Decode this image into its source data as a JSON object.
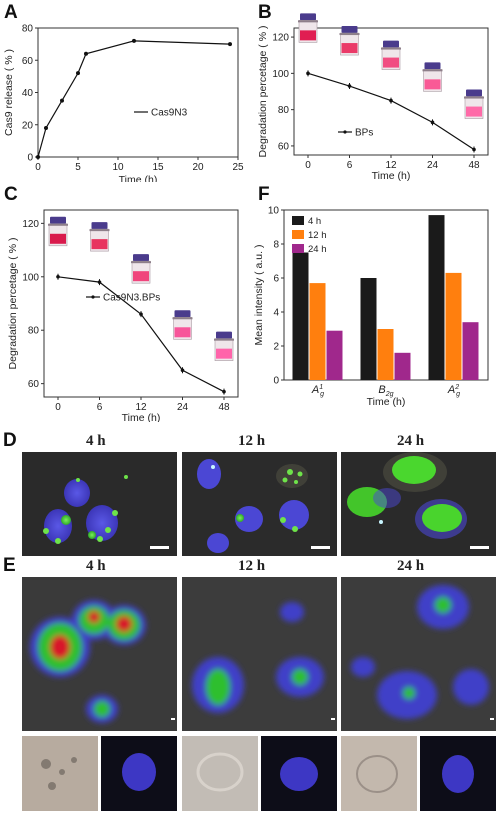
{
  "panel_letters": {
    "a": "A",
    "b": "B",
    "c": "C",
    "f": "F",
    "d": "D",
    "e": "E"
  },
  "chart_data": [
    {
      "id": "A",
      "type": "line",
      "x": [
        0,
        1,
        3,
        5,
        6,
        12,
        24
      ],
      "values": [
        0,
        18,
        35,
        52,
        64,
        72,
        70
      ],
      "xlabel": "Time (h)",
      "ylabel": "Cas9 release ( % )",
      "xlim": [
        0,
        25
      ],
      "ylim": [
        0,
        80
      ],
      "xticks": [
        0,
        5,
        10,
        15,
        20,
        25
      ],
      "yticks": [
        0,
        20,
        40,
        60,
        80
      ],
      "legend": "Cas9N3"
    },
    {
      "id": "B",
      "type": "line",
      "categories": [
        "0",
        "6",
        "12",
        "24",
        "48"
      ],
      "values": [
        100,
        93,
        85,
        73,
        58
      ],
      "xlabel": "Time (h)",
      "ylabel": "Degradation percetage ( % )",
      "ylim": [
        55,
        125
      ],
      "yticks": [
        60,
        80,
        100,
        120
      ],
      "legend": "BPs"
    },
    {
      "id": "C",
      "type": "line",
      "categories": [
        "0",
        "6",
        "12",
        "24",
        "48"
      ],
      "values": [
        100,
        98,
        86,
        65,
        57
      ],
      "xlabel": "Time (h)",
      "ylabel": "Degradation percetage ( % )",
      "ylim": [
        55,
        125
      ],
      "yticks": [
        60,
        80,
        100,
        120
      ],
      "legend": "Cas9N3.BPs"
    },
    {
      "id": "F",
      "type": "bar",
      "categories": [
        "A1g",
        "B2g",
        "A2g"
      ],
      "category_main": [
        "A",
        "B",
        "A"
      ],
      "category_sup": [
        "1",
        "",
        ""
      ],
      "category_sub": [
        "g",
        "2g",
        "g"
      ],
      "category_sup2": [
        "",
        "",
        "2"
      ],
      "series": [
        {
          "name": "4 h",
          "values": [
            7.5,
            6.0,
            9.7
          ],
          "color": "#1a1a1a"
        },
        {
          "name": "12 h",
          "values": [
            5.7,
            3.0,
            6.3
          ],
          "color": "#ff7f0e"
        },
        {
          "name": "24 h",
          "values": [
            2.9,
            1.6,
            3.4
          ],
          "color": "#a0288c"
        }
      ],
      "xlabel": "Time (h)",
      "ylabel": "Mean intensity ( a.u. )",
      "ylim": [
        0,
        10
      ],
      "yticks": [
        0,
        2,
        4,
        6,
        8,
        10
      ]
    }
  ],
  "panel_d": {
    "times": [
      "4 h",
      "12 h",
      "24 h"
    ]
  },
  "panel_e": {
    "times": [
      "4 h",
      "12 h",
      "24 h"
    ]
  }
}
